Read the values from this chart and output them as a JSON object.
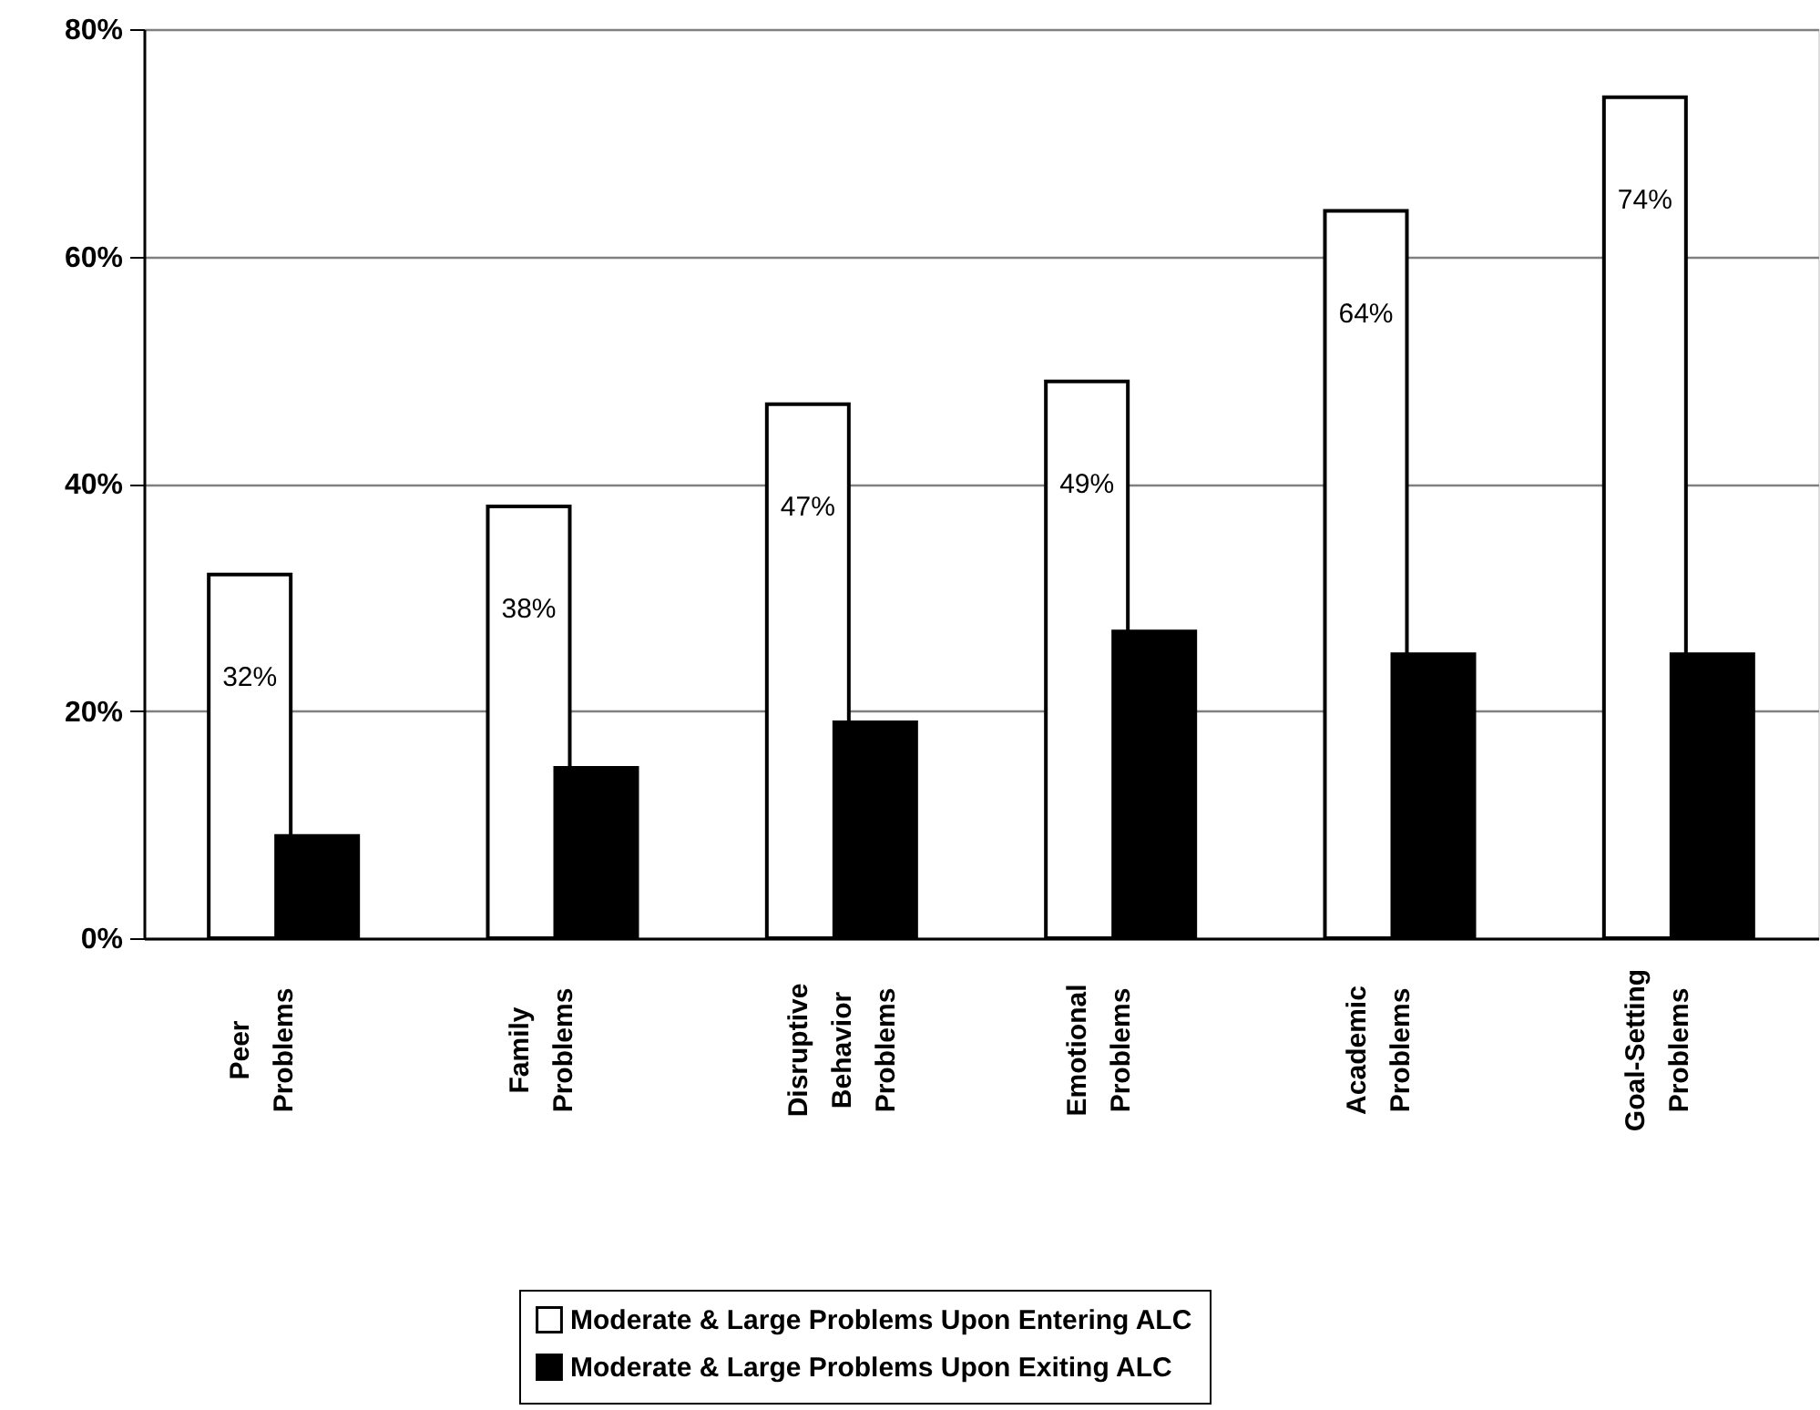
{
  "chart_data": {
    "type": "bar",
    "categories": [
      "Peer Problems",
      "Family Problems",
      "Disruptive Behavior Problems",
      "Emotional Problems",
      "Academic Problems",
      "Goal-Setting Problems"
    ],
    "series": [
      {
        "name": "Moderate & Large Problems Upon Entering ALC",
        "color": "#ffffff",
        "values": [
          32,
          38,
          47,
          49,
          64,
          74
        ],
        "value_labels": [
          "32%",
          "38%",
          "47%",
          "49%",
          "64%",
          "74%"
        ]
      },
      {
        "name": "Moderate & Large Problems Upon Exiting ALC",
        "color": "#000000",
        "values": [
          9,
          15,
          19,
          27,
          25,
          25
        ]
      }
    ],
    "ylim": [
      0,
      80
    ],
    "yticks": [
      {
        "value": 0,
        "label": "0%"
      },
      {
        "value": 20,
        "label": "20%"
      },
      {
        "value": 40,
        "label": "40%"
      },
      {
        "value": 60,
        "label": "60%"
      },
      {
        "value": 80,
        "label": "80%"
      }
    ],
    "grid": "y",
    "legend": "bottom"
  }
}
